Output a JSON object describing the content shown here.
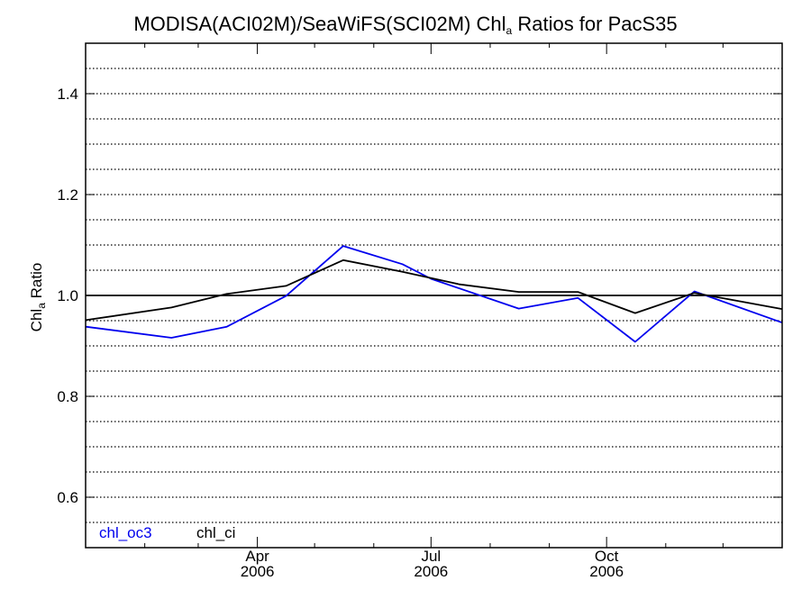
{
  "chart_data": {
    "type": "line",
    "title": {
      "prefix": "MODISA(ACI02M)/SeaWiFS(SCI02M)  Chl",
      "sub": "a",
      "suffix": " Ratios for PacS35"
    },
    "ylabel": {
      "prefix": "Chl",
      "sub": "a",
      "suffix": " Ratio"
    },
    "xlabel": "",
    "x_range": [
      "2006-01-01",
      "2007-01-01"
    ],
    "ylim": [
      0.5,
      1.5
    ],
    "y_ticks": [
      {
        "value": 0.6,
        "label": "0.6"
      },
      {
        "value": 0.8,
        "label": "0.8"
      },
      {
        "value": 1.0,
        "label": "1.0"
      },
      {
        "value": 1.2,
        "label": "1.2"
      },
      {
        "value": 1.4,
        "label": "1.4"
      }
    ],
    "x_ticks": [
      {
        "date": "2006-04-01",
        "label": "Apr",
        "year": "2006"
      },
      {
        "date": "2006-07-01",
        "label": "Jul",
        "year": "2006"
      },
      {
        "date": "2006-10-01",
        "label": "Oct",
        "year": "2006"
      }
    ],
    "x_minor_ticks": [
      "2006-02-01",
      "2006-03-01",
      "2006-05-01",
      "2006-06-01",
      "2006-08-01",
      "2006-09-01",
      "2006-11-01",
      "2006-12-01"
    ],
    "grid": "dotted horizontal every 0.05",
    "reference_line": 1.0,
    "series": [
      {
        "name": "chl_oc3",
        "color": "#0000ee",
        "points": [
          {
            "x": "2006-01-01",
            "y": 0.938
          },
          {
            "x": "2006-02-15",
            "y": 0.916
          },
          {
            "x": "2006-03-16",
            "y": 0.938
          },
          {
            "x": "2006-04-16",
            "y": 0.999
          },
          {
            "x": "2006-05-16",
            "y": 1.098
          },
          {
            "x": "2006-06-16",
            "y": 1.062
          },
          {
            "x": "2006-07-01",
            "y": 1.033
          },
          {
            "x": "2006-08-16",
            "y": 0.974
          },
          {
            "x": "2006-09-16",
            "y": 0.995
          },
          {
            "x": "2006-10-16",
            "y": 0.908
          },
          {
            "x": "2006-11-16",
            "y": 1.008
          },
          {
            "x": "2007-01-01",
            "y": 0.946
          }
        ]
      },
      {
        "name": "chl_ci",
        "color": "#000000",
        "points": [
          {
            "x": "2006-01-01",
            "y": 0.951
          },
          {
            "x": "2006-02-15",
            "y": 0.976
          },
          {
            "x": "2006-03-16",
            "y": 1.003
          },
          {
            "x": "2006-04-16",
            "y": 1.019
          },
          {
            "x": "2006-05-16",
            "y": 1.07
          },
          {
            "x": "2006-06-16",
            "y": 1.047
          },
          {
            "x": "2006-07-16",
            "y": 1.022
          },
          {
            "x": "2006-08-16",
            "y": 1.007
          },
          {
            "x": "2006-09-16",
            "y": 1.007
          },
          {
            "x": "2006-10-16",
            "y": 0.965
          },
          {
            "x": "2006-11-16",
            "y": 1.005
          },
          {
            "x": "2007-01-01",
            "y": 0.973
          }
        ]
      }
    ],
    "legend": {
      "placement": "bottom-left"
    }
  }
}
